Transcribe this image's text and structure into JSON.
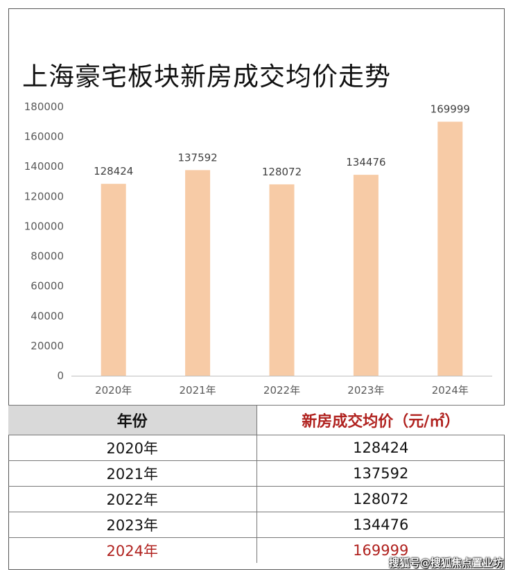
{
  "title": "上海豪宅板块新房成交均价走势",
  "chart_data": {
    "type": "bar",
    "title": "上海豪宅板块新房成交均价走势",
    "categories": [
      "2020年",
      "2021年",
      "2022年",
      "2023年",
      "2024年"
    ],
    "values": [
      128424,
      137592,
      128072,
      134476,
      169999
    ],
    "data_labels": [
      "128424",
      "137592",
      "128072",
      "134476",
      "169999"
    ],
    "ylim": [
      0,
      180000
    ],
    "yticks": [
      "0",
      "20000",
      "40000",
      "60000",
      "80000",
      "100000",
      "120000",
      "140000",
      "160000",
      "180000"
    ],
    "xlabel": "",
    "ylabel": "",
    "grid": false,
    "bar_color": "#f7cba6"
  },
  "table": {
    "headers": [
      "年份",
      "新房成交均价（元/㎡）"
    ],
    "rows": [
      [
        "2020年",
        "128424"
      ],
      [
        "2021年",
        "137592"
      ],
      [
        "2022年",
        "128072"
      ],
      [
        "2023年",
        "134476"
      ],
      [
        "2024年",
        "169999"
      ]
    ],
    "highlight_color": "#b0211e"
  },
  "watermark": "搜狐号@搜狐焦点置业坊"
}
